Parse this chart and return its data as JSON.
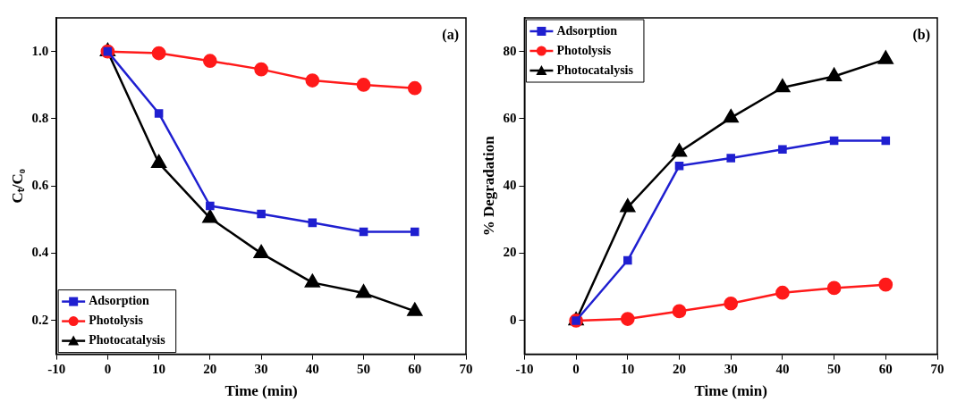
{
  "chart_data": [
    {
      "type": "line",
      "xlabel": "Time (min)",
      "ylabel": "Cₜ/C₀",
      "annotations": [
        "(a)"
      ],
      "x": [
        0,
        10,
        20,
        30,
        40,
        50,
        60
      ],
      "xlim": [
        -10,
        70
      ],
      "xticks": [
        -10,
        0,
        10,
        20,
        30,
        40,
        50,
        60,
        70
      ],
      "ylim": [
        0.1,
        1.1
      ],
      "yticks": [
        0.2,
        0.4,
        0.6,
        0.8,
        {
          "value": 1,
          "label": "1.0"
        }
      ],
      "grid": false,
      "legend": "bottom left",
      "line_style": "solid",
      "series": [
        {
          "name": "Adsorption",
          "color": "#1f1fd0",
          "marker": "square",
          "values": [
            1.0,
            0.816,
            0.541,
            0.517,
            0.491,
            0.464,
            0.464
          ]
        },
        {
          "name": "Photolysis",
          "color": "#ff1a1a",
          "marker": "circle",
          "values": [
            1.0,
            0.995,
            0.972,
            0.947,
            0.914,
            0.901,
            0.891
          ]
        },
        {
          "name": "Photocatalysis",
          "color": "#000000",
          "marker": "triangle",
          "values": [
            1.0,
            0.668,
            0.505,
            0.4,
            0.313,
            0.282,
            0.228
          ]
        }
      ]
    },
    {
      "type": "line",
      "xlabel": "Time (min)",
      "ylabel": "% Degradation",
      "annotations": [
        "(b)"
      ],
      "x": [
        0,
        10,
        20,
        30,
        40,
        50,
        60
      ],
      "xlim": [
        -10,
        70
      ],
      "xticks": [
        -10,
        0,
        10,
        20,
        30,
        40,
        50,
        60,
        70
      ],
      "ylim": [
        -10,
        90
      ],
      "yticks": [
        0,
        20,
        40,
        60,
        80
      ],
      "grid": false,
      "legend": "top left",
      "line_style": "solid",
      "series": [
        {
          "name": "Adsorption",
          "color": "#1f1fd0",
          "marker": "square",
          "values": [
            0,
            17.9,
            46,
            48.3,
            50.9,
            53.5,
            53.5
          ]
        },
        {
          "name": "Photolysis",
          "color": "#ff1a1a",
          "marker": "circle",
          "values": [
            0,
            0.5,
            2.8,
            5.1,
            8.3,
            9.7,
            10.7
          ]
        },
        {
          "name": "Photocatalysis",
          "color": "#000000",
          "marker": "triangle",
          "values": [
            0,
            33.7,
            50.1,
            60.3,
            69.3,
            72.6,
            77.7
          ]
        }
      ]
    }
  ]
}
